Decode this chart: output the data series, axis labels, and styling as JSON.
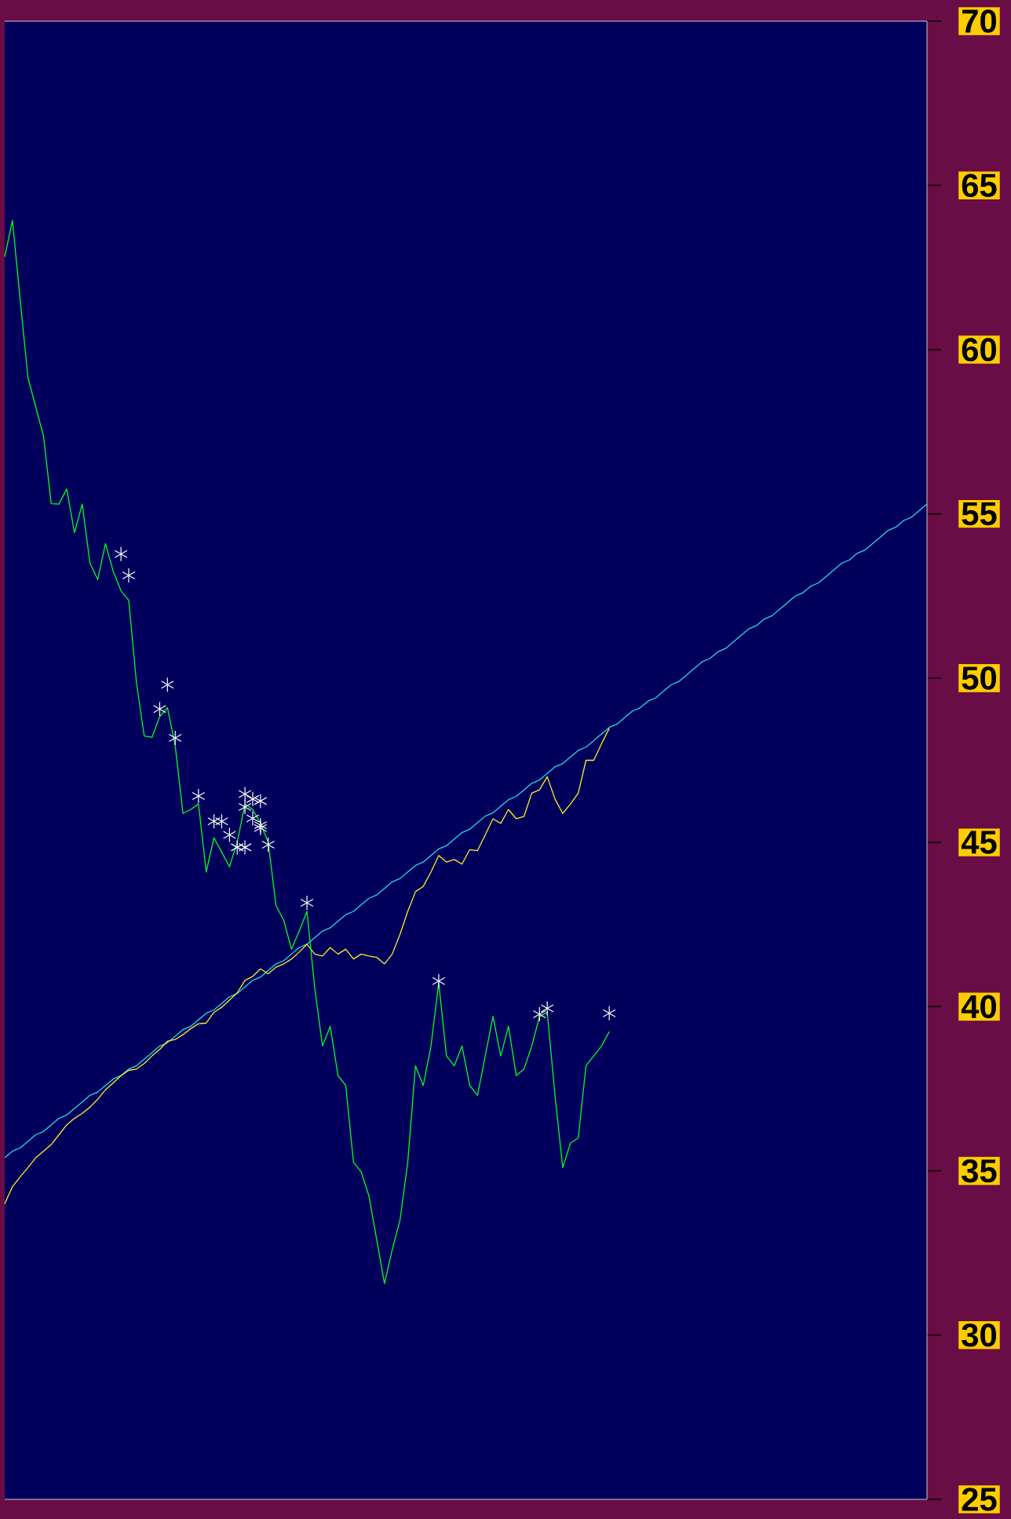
{
  "chart_data": {
    "type": "line",
    "ylim": [
      25,
      70
    ],
    "yticks": [
      25,
      30,
      35,
      40,
      45,
      50,
      55,
      60,
      65,
      70
    ],
    "tick_labels": "y",
    "marker": "none",
    "line_style": "solid",
    "categories": [
      null,
      null,
      null,
      null,
      null,
      null,
      null,
      null,
      null,
      null,
      null,
      null,
      null,
      null,
      null,
      null,
      null,
      null,
      null,
      null,
      null,
      null,
      null,
      null,
      null,
      null,
      null,
      null,
      null,
      null,
      null,
      null,
      null,
      null,
      null,
      null,
      null,
      null,
      null,
      null,
      null,
      null,
      null,
      null,
      null,
      null,
      null,
      null,
      null,
      null,
      null,
      null,
      null,
      null,
      null,
      null,
      null,
      null,
      null,
      null,
      null,
      null,
      null,
      null,
      null,
      null,
      null,
      null,
      null,
      null,
      null,
      null,
      null,
      null,
      null,
      null,
      null,
      null,
      null,
      null,
      null,
      null,
      null,
      null,
      null,
      null,
      null,
      null,
      null,
      null,
      null,
      null,
      null,
      null,
      null,
      null,
      null,
      null,
      null,
      null,
      null,
      null,
      null,
      null,
      null,
      null,
      null,
      null,
      null,
      null,
      null,
      null,
      null,
      null,
      null,
      null,
      null,
      null,
      null,
      null
    ],
    "series": [
      {
        "color": "#22dddd",
        "values": [
          35.4,
          35.6,
          35.7,
          35.9,
          36.1,
          36.2,
          36.4,
          36.6,
          36.7,
          36.9,
          37.1,
          37.3,
          37.4,
          37.6,
          37.8,
          37.9,
          38.1,
          38.2,
          38.4,
          38.6,
          38.8,
          38.9,
          39.1,
          39.3,
          39.4,
          39.6,
          39.8,
          39.9,
          40.1,
          40.3,
          40.4,
          40.6,
          40.8,
          40.9,
          41.1,
          41.3,
          41.4,
          41.6,
          41.8,
          41.9,
          42.1,
          42.3,
          42.4,
          42.6,
          42.8,
          42.9,
          43.1,
          43.3,
          43.4,
          43.6,
          43.8,
          43.9,
          44.1,
          44.3,
          44.4,
          44.6,
          44.8,
          44.9,
          45.1,
          45.3,
          45.4,
          45.6,
          45.8,
          45.9,
          46.1,
          46.3,
          46.4,
          46.6,
          46.8,
          46.9,
          47.1,
          47.3,
          47.4,
          47.6,
          47.8,
          47.9,
          48.1,
          48.3,
          48.5,
          48.6,
          48.8,
          49.0,
          49.1,
          49.3,
          49.4,
          49.6,
          49.8,
          49.9,
          50.1,
          50.3,
          50.5,
          50.6,
          50.8,
          50.9,
          51.1,
          51.3,
          51.5,
          51.6,
          51.8,
          51.9,
          52.1,
          52.3,
          52.5,
          52.6,
          52.8,
          52.9,
          53.1,
          53.3,
          53.5,
          53.6,
          53.8,
          53.9,
          54.1,
          54.3,
          54.5,
          54.6,
          54.8,
          54.9,
          55.1,
          55.3
        ]
      },
      {
        "color": "#ffee22",
        "values": [
          34.0,
          34.52,
          34.82,
          35.1,
          35.4,
          35.6,
          35.8,
          36.1,
          36.4,
          36.6,
          36.75,
          36.94,
          37.18,
          37.47,
          37.68,
          37.9,
          38.06,
          38.1,
          38.27,
          38.5,
          38.7,
          38.95,
          39.0,
          39.15,
          39.33,
          39.48,
          39.5,
          39.83,
          39.98,
          40.2,
          40.42,
          40.8,
          40.92,
          41.15,
          41.0,
          41.2,
          41.3,
          41.45,
          41.66,
          41.9,
          41.6,
          41.54,
          41.8,
          41.6,
          41.75,
          41.45,
          41.6,
          41.54,
          41.5,
          41.3,
          41.6,
          42.2,
          42.9,
          43.5,
          43.66,
          44.1,
          44.6,
          44.4,
          44.48,
          44.34,
          44.78,
          44.75,
          45.23,
          45.72,
          45.58,
          46.0,
          45.72,
          45.79,
          46.5,
          46.6,
          47.0,
          46.32,
          45.88,
          46.17,
          46.5,
          47.5,
          47.5,
          48.0,
          48.47,
          null,
          null,
          null,
          null,
          null,
          null,
          null,
          null,
          null,
          null,
          null,
          null,
          null,
          null,
          null,
          null,
          null,
          null,
          null,
          null,
          null,
          null,
          null,
          null,
          null,
          null,
          null,
          null,
          null,
          null,
          null,
          null,
          null,
          null,
          null,
          null,
          null,
          null,
          null,
          null,
          null
        ]
      },
      {
        "color": "#00ff22",
        "values": [
          62.83,
          63.93,
          61.5,
          59.15,
          58.26,
          57.38,
          55.31,
          55.3,
          55.76,
          54.43,
          55.3,
          53.5,
          53.0,
          54.1,
          53.25,
          52.66,
          52.37,
          49.86,
          48.24,
          48.2,
          48.83,
          49.1,
          47.94,
          45.88,
          46.0,
          46.17,
          44.1,
          45.14,
          44.7,
          44.26,
          45.0,
          46.17,
          46.0,
          45.58,
          45.0,
          43.08,
          42.63,
          41.75,
          42.3,
          42.9,
          40.57,
          38.8,
          39.4,
          37.9,
          37.6,
          35.26,
          34.97,
          34.23,
          32.9,
          31.57,
          32.6,
          33.5,
          35.26,
          38.2,
          37.6,
          38.8,
          40.72,
          38.5,
          38.2,
          38.8,
          37.6,
          37.3,
          38.5,
          39.7,
          38.5,
          39.4,
          37.9,
          38.1,
          38.8,
          39.7,
          39.83,
          37.3,
          35.1,
          35.85,
          36.0,
          38.2,
          38.5,
          38.8,
          39.24,
          null,
          null,
          null,
          null,
          null,
          null,
          null,
          null,
          null,
          null,
          null,
          null,
          null,
          null,
          null,
          null,
          null,
          null,
          null,
          null,
          null,
          null,
          null,
          null,
          null,
          null,
          null,
          null,
          null,
          null,
          null,
          null,
          null,
          null,
          null,
          null,
          null,
          null,
          null,
          null,
          null
        ]
      },
      {
        "type": "scatter",
        "marker": "cross",
        "color": "#ffffff",
        "values": [
          null,
          null,
          null,
          null,
          null,
          null,
          null,
          null,
          null,
          null,
          null,
          null,
          null,
          null,
          null,
          53.78,
          53.13,
          null,
          null,
          null,
          49.06,
          49.8,
          48.18,
          null,
          null,
          46.41,
          null,
          45.64,
          45.64,
          45.23,
          44.85,
          44.85,
          46.32,
          46.26,
          44.93,
          null,
          null,
          null,
          null,
          43.16,
          null,
          null,
          null,
          null,
          null,
          null,
          null,
          null,
          null,
          null,
          null,
          null,
          null,
          null,
          null,
          null,
          40.78,
          null,
          null,
          null,
          null,
          null,
          null,
          null,
          null,
          null,
          null,
          null,
          null,
          39.77,
          39.95,
          null,
          null,
          null,
          null,
          null,
          null,
          null,
          39.8,
          null,
          null,
          null,
          null,
          null,
          null,
          null,
          null,
          null,
          null,
          null,
          null,
          null,
          null,
          null,
          null,
          null,
          null,
          null,
          null,
          null,
          null,
          null,
          null,
          null,
          null,
          null,
          null,
          null,
          null,
          null,
          null,
          null,
          null,
          null,
          null,
          null,
          null,
          null,
          null,
          null
        ]
      },
      {
        "type": "scatter",
        "marker": "cross",
        "color": "#ffffff",
        "values": [
          null,
          null,
          null,
          null,
          null,
          null,
          null,
          null,
          null,
          null,
          null,
          null,
          null,
          null,
          null,
          null,
          null,
          null,
          null,
          null,
          null,
          null,
          null,
          null,
          null,
          null,
          null,
          null,
          null,
          null,
          null,
          46.47,
          45.73,
          45.52,
          null,
          null,
          null,
          null,
          null,
          null,
          null,
          null,
          null,
          null,
          null,
          null,
          null,
          null,
          null,
          null,
          null,
          null,
          null,
          null,
          null,
          null,
          null,
          null,
          null,
          null,
          null,
          null,
          null,
          null,
          null,
          null,
          null,
          null,
          null,
          null,
          null,
          null,
          null,
          null,
          null,
          null,
          null,
          null,
          null,
          null,
          null,
          null,
          null,
          null,
          null,
          null,
          null,
          null,
          null,
          null,
          null,
          null,
          null,
          null,
          null,
          null,
          null,
          null,
          null,
          null,
          null,
          null,
          null,
          null,
          null,
          null,
          null,
          null,
          null,
          null,
          null,
          null,
          null,
          null,
          null,
          null,
          null,
          null,
          null,
          null
        ]
      },
      {
        "type": "scatter",
        "marker": "cross",
        "color": "#ffffff",
        "values": [
          null,
          null,
          null,
          null,
          null,
          null,
          null,
          null,
          null,
          null,
          null,
          null,
          null,
          null,
          null,
          null,
          null,
          null,
          null,
          null,
          null,
          null,
          null,
          null,
          null,
          null,
          null,
          null,
          null,
          null,
          null,
          46.08,
          null,
          45.44,
          null,
          null,
          null,
          null,
          null,
          null,
          null,
          null,
          null,
          null,
          null,
          null,
          null,
          null,
          null,
          null,
          null,
          null,
          null,
          null,
          null,
          null,
          null,
          null,
          null,
          null,
          null,
          null,
          null,
          null,
          null,
          null,
          null,
          null,
          null,
          null,
          null,
          null,
          null,
          null,
          null,
          null,
          null,
          null,
          null,
          null,
          null,
          null,
          null,
          null,
          null,
          null,
          null,
          null,
          null,
          null,
          null,
          null,
          null,
          null,
          null,
          null,
          null,
          null,
          null,
          null,
          null,
          null,
          null,
          null,
          null,
          null,
          null,
          null,
          null,
          null,
          null,
          null,
          null,
          null,
          null,
          null,
          null,
          null,
          null,
          null
        ]
      }
    ]
  }
}
